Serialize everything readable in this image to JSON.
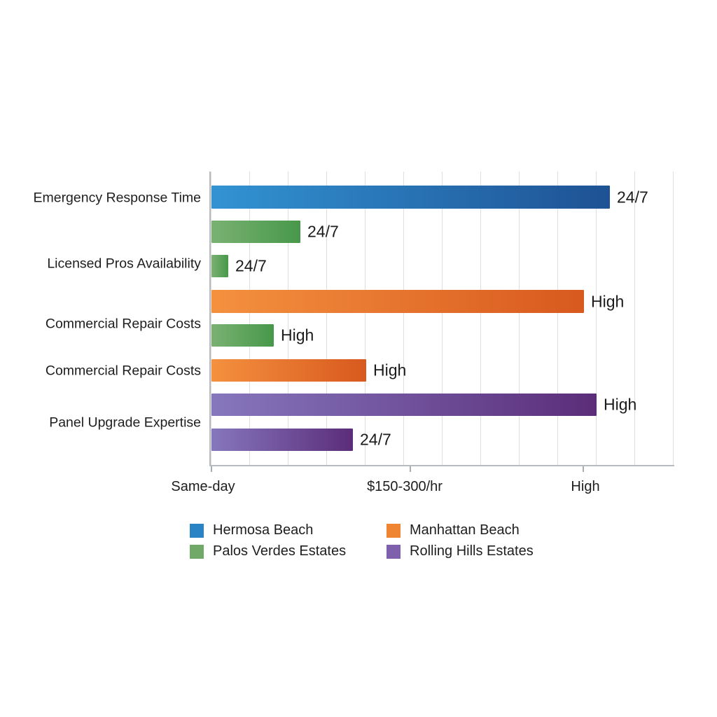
{
  "background_color": "#ffffff",
  "chart_data": {
    "type": "bar",
    "orientation": "horizontal",
    "title": "",
    "xlabel": "",
    "ylabel": "",
    "grid": "vertical-light",
    "legend_position": "bottom",
    "x_axis_labels": [
      "Same-day",
      "$150-300/hr",
      "High"
    ],
    "categories": [
      "Emergency Response Time",
      "Licensed Pros Availability",
      "Commercial Repair Costs",
      "Commercial Repair Costs",
      "Panel Upgrade Expertise"
    ],
    "legend": [
      {
        "name": "Hermosa Beach",
        "swatch_color": "#2a83c5"
      },
      {
        "name": "Manhattan Beach",
        "swatch_color": "#ef8431"
      },
      {
        "name": "Palos Verdes Estates",
        "swatch_color": "#71aa68"
      },
      {
        "name": "Rolling Hills Estates",
        "swatch_color": "#7e60ad"
      }
    ],
    "series_colors": {
      "Hermosa Beach": {
        "from": "#3293d3",
        "to": "#1e5294"
      },
      "Manhattan Beach": {
        "from": "#f4913f",
        "to": "#d8591e"
      },
      "Palos Verdes Estates": {
        "from": "#7ab173",
        "to": "#47984a"
      },
      "Rolling Hills Estates": {
        "from": "#8677bd",
        "to": "#5b2d79"
      }
    },
    "bars": [
      {
        "category": "Emergency Response Time",
        "series": "Hermosa Beach",
        "label": "24/7",
        "value_pct": 86.0
      },
      {
        "category": "Licensed Pros Availability",
        "series": "Palos Verdes Estates",
        "label": "24/7",
        "value_pct": 19.2
      },
      {
        "category": "Licensed Pros Availability",
        "series": "Palos Verdes Estates",
        "label": "24/7",
        "value_pct": 3.6
      },
      {
        "category": "Commercial Repair Costs",
        "series": "Manhattan Beach",
        "label": "High",
        "value_pct": 80.4
      },
      {
        "category": "Commercial Repair Costs",
        "series": "Palos Verdes Estates",
        "label": "High",
        "value_pct": 13.4
      },
      {
        "category": "Commercial Repair Costs",
        "series": "Manhattan Beach",
        "label": "High",
        "value_pct": 33.4
      },
      {
        "category": "Panel Upgrade Expertise",
        "series": "Rolling Hills Estates",
        "label": "High",
        "value_pct": 83.1
      },
      {
        "category": "Panel Upgrade Expertise",
        "series": "Rolling Hills Estates",
        "label": "24/7",
        "value_pct": 30.5
      }
    ],
    "colors": {
      "gridline": "#dedede",
      "axis": "#b7bbbf",
      "text": "#1e1e1e"
    }
  }
}
